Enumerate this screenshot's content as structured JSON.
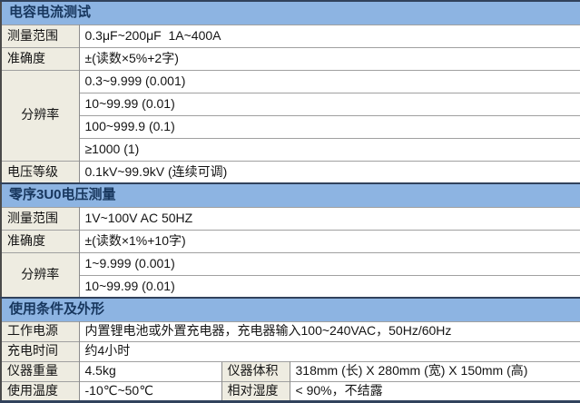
{
  "colors": {
    "header_bg": "#8db4e2",
    "header_text": "#17365d",
    "label_bg": "#eeece1",
    "grid_line": "#a0a0a0",
    "dark_border": "#31425c"
  },
  "sections": [
    {
      "title": "电容电流测试",
      "rows": [
        {
          "label": "测量范围",
          "value": "0.3μF~200μF  1A~400A"
        },
        {
          "label": "准确度",
          "value": "±(读数×5%+2字)"
        },
        {
          "label": "分辨率",
          "values": [
            "0.3~9.999 (0.001)",
            "10~99.99 (0.01)",
            "100~999.9 (0.1)",
            "≥1000 (1)"
          ]
        },
        {
          "label": "电压等级",
          "value": "0.1kV~99.9kV (连续可调)"
        }
      ]
    },
    {
      "title": "零序3U0电压测量",
      "rows": [
        {
          "label": "测量范围",
          "value": "1V~100V AC 50HZ"
        },
        {
          "label": "准确度",
          "value": "±(读数×1%+10字)"
        },
        {
          "label": "分辨率",
          "values": [
            "1~9.999 (0.001)",
            "10~99.99 (0.01)"
          ]
        }
      ]
    },
    {
      "title": "使用条件及外形",
      "rows": [
        {
          "label": "工作电源",
          "value": "内置锂电池或外置充电器，充电器输入100~240VAC，50Hz/60Hz"
        },
        {
          "label": "充电时间",
          "value": "约4小时"
        },
        {
          "label": "仪器重量",
          "value": "4.5kg",
          "label2": "仪器体积",
          "value2": "318mm (长) X 280mm (宽) X 150mm (高)"
        },
        {
          "label": "使用温度",
          "value": "-10℃~50℃",
          "label2": "相对湿度",
          "value2": "< 90%，不结露"
        }
      ]
    }
  ]
}
